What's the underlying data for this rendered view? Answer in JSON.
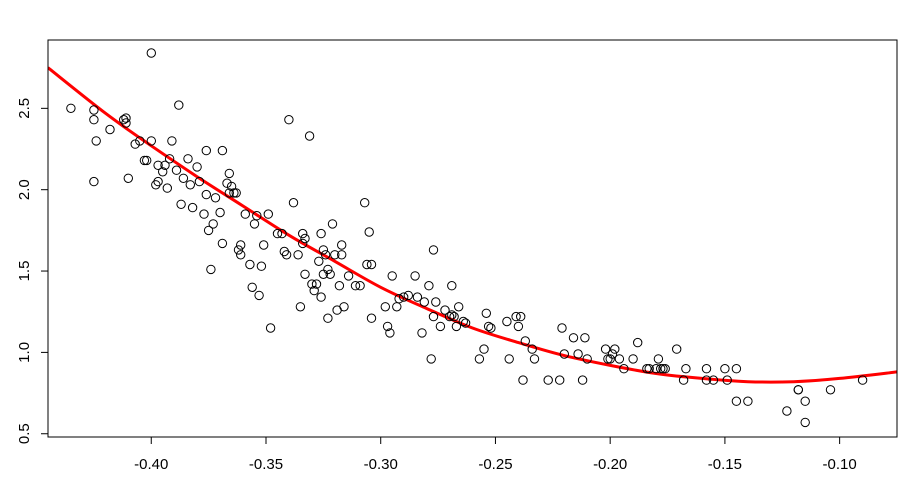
{
  "chart_data": {
    "type": "scatter",
    "title": "",
    "xlabel": "",
    "ylabel": "",
    "xlim": [
      -0.445,
      -0.075
    ],
    "ylim": [
      0.48,
      2.92
    ],
    "x_ticks": [
      -0.4,
      -0.35,
      -0.3,
      -0.25,
      -0.2,
      -0.15,
      -0.1
    ],
    "x_tick_labels": [
      "-0.40",
      "-0.35",
      "-0.30",
      "-0.25",
      "-0.20",
      "-0.15",
      "-0.10"
    ],
    "y_ticks": [
      0.5,
      1.0,
      1.5,
      2.0,
      2.5
    ],
    "y_tick_labels": [
      "0.5",
      "1.0",
      "1.5",
      "2.0",
      "2.5"
    ],
    "grid": false,
    "legend": "none",
    "series": [
      {
        "kind": "points",
        "marker": "open-circle",
        "color": "#000000",
        "points": [
          [
            -0.435,
            2.5
          ],
          [
            -0.425,
            2.49
          ],
          [
            -0.425,
            2.43
          ],
          [
            -0.424,
            2.3
          ],
          [
            -0.425,
            2.05
          ],
          [
            -0.418,
            2.37
          ],
          [
            -0.412,
            2.43
          ],
          [
            -0.411,
            2.44
          ],
          [
            -0.411,
            2.41
          ],
          [
            -0.41,
            2.07
          ],
          [
            -0.407,
            2.28
          ],
          [
            -0.405,
            2.3
          ],
          [
            -0.403,
            2.18
          ],
          [
            -0.402,
            2.18
          ],
          [
            -0.4,
            2.84
          ],
          [
            -0.4,
            2.3
          ],
          [
            -0.398,
            2.03
          ],
          [
            -0.397,
            2.05
          ],
          [
            -0.397,
            2.15
          ],
          [
            -0.395,
            2.11
          ],
          [
            -0.394,
            2.15
          ],
          [
            -0.393,
            2.01
          ],
          [
            -0.392,
            2.19
          ],
          [
            -0.391,
            2.3
          ],
          [
            -0.389,
            2.12
          ],
          [
            -0.388,
            2.52
          ],
          [
            -0.387,
            1.91
          ],
          [
            -0.386,
            2.07
          ],
          [
            -0.384,
            2.19
          ],
          [
            -0.383,
            2.03
          ],
          [
            -0.382,
            1.89
          ],
          [
            -0.38,
            2.14
          ],
          [
            -0.379,
            2.05
          ],
          [
            -0.377,
            1.85
          ],
          [
            -0.376,
            2.24
          ],
          [
            -0.376,
            1.97
          ],
          [
            -0.375,
            1.75
          ],
          [
            -0.374,
            1.51
          ],
          [
            -0.373,
            1.79
          ],
          [
            -0.372,
            1.95
          ],
          [
            -0.37,
            1.86
          ],
          [
            -0.369,
            2.24
          ],
          [
            -0.369,
            1.67
          ],
          [
            -0.367,
            2.04
          ],
          [
            -0.366,
            2.1
          ],
          [
            -0.366,
            1.98
          ],
          [
            -0.365,
            2.02
          ],
          [
            -0.364,
            1.98
          ],
          [
            -0.363,
            1.98
          ],
          [
            -0.362,
            1.63
          ],
          [
            -0.361,
            1.66
          ],
          [
            -0.361,
            1.6
          ],
          [
            -0.359,
            1.85
          ],
          [
            -0.357,
            1.54
          ],
          [
            -0.356,
            1.4
          ],
          [
            -0.355,
            1.79
          ],
          [
            -0.354,
            1.84
          ],
          [
            -0.353,
            1.35
          ],
          [
            -0.352,
            1.53
          ],
          [
            -0.351,
            1.66
          ],
          [
            -0.349,
            1.85
          ],
          [
            -0.348,
            1.15
          ],
          [
            -0.345,
            1.73
          ],
          [
            -0.343,
            1.73
          ],
          [
            -0.342,
            1.62
          ],
          [
            -0.341,
            1.6
          ],
          [
            -0.34,
            2.43
          ],
          [
            -0.338,
            1.92
          ],
          [
            -0.336,
            1.6
          ],
          [
            -0.335,
            1.28
          ],
          [
            -0.334,
            1.67
          ],
          [
            -0.334,
            1.73
          ],
          [
            -0.333,
            1.7
          ],
          [
            -0.333,
            1.48
          ],
          [
            -0.331,
            2.33
          ],
          [
            -0.33,
            1.42
          ],
          [
            -0.329,
            1.38
          ],
          [
            -0.328,
            1.42
          ],
          [
            -0.327,
            1.56
          ],
          [
            -0.326,
            1.73
          ],
          [
            -0.326,
            1.34
          ],
          [
            -0.325,
            1.63
          ],
          [
            -0.325,
            1.48
          ],
          [
            -0.324,
            1.6
          ],
          [
            -0.323,
            1.51
          ],
          [
            -0.323,
            1.21
          ],
          [
            -0.322,
            1.48
          ],
          [
            -0.321,
            1.79
          ],
          [
            -0.32,
            1.6
          ],
          [
            -0.319,
            1.26
          ],
          [
            -0.318,
            1.41
          ],
          [
            -0.317,
            1.6
          ],
          [
            -0.317,
            1.66
          ],
          [
            -0.316,
            1.28
          ],
          [
            -0.314,
            1.47
          ],
          [
            -0.311,
            1.41
          ],
          [
            -0.309,
            1.41
          ],
          [
            -0.307,
            1.92
          ],
          [
            -0.306,
            1.54
          ],
          [
            -0.305,
            1.74
          ],
          [
            -0.304,
            1.54
          ],
          [
            -0.304,
            1.21
          ],
          [
            -0.298,
            1.28
          ],
          [
            -0.297,
            1.16
          ],
          [
            -0.296,
            1.12
          ],
          [
            -0.295,
            1.47
          ],
          [
            -0.293,
            1.28
          ],
          [
            -0.292,
            1.33
          ],
          [
            -0.29,
            1.34
          ],
          [
            -0.288,
            1.35
          ],
          [
            -0.285,
            1.47
          ],
          [
            -0.284,
            1.34
          ],
          [
            -0.282,
            1.12
          ],
          [
            -0.281,
            1.31
          ],
          [
            -0.279,
            1.41
          ],
          [
            -0.278,
            0.96
          ],
          [
            -0.277,
            1.22
          ],
          [
            -0.277,
            1.63
          ],
          [
            -0.276,
            1.31
          ],
          [
            -0.274,
            1.16
          ],
          [
            -0.272,
            1.26
          ],
          [
            -0.27,
            1.22
          ],
          [
            -0.269,
            1.41
          ],
          [
            -0.269,
            1.23
          ],
          [
            -0.268,
            1.22
          ],
          [
            -0.267,
            1.16
          ],
          [
            -0.266,
            1.28
          ],
          [
            -0.264,
            1.19
          ],
          [
            -0.263,
            1.18
          ],
          [
            -0.257,
            0.96
          ],
          [
            -0.255,
            1.02
          ],
          [
            -0.254,
            1.24
          ],
          [
            -0.253,
            1.16
          ],
          [
            -0.252,
            1.15
          ],
          [
            -0.245,
            1.19
          ],
          [
            -0.244,
            0.96
          ],
          [
            -0.241,
            1.22
          ],
          [
            -0.24,
            1.16
          ],
          [
            -0.239,
            1.22
          ],
          [
            -0.238,
            0.83
          ],
          [
            -0.237,
            1.07
          ],
          [
            -0.234,
            1.02
          ],
          [
            -0.233,
            0.96
          ],
          [
            -0.227,
            0.83
          ],
          [
            -0.222,
            0.83
          ],
          [
            -0.221,
            1.15
          ],
          [
            -0.22,
            0.99
          ],
          [
            -0.216,
            1.09
          ],
          [
            -0.214,
            0.99
          ],
          [
            -0.212,
            0.83
          ],
          [
            -0.211,
            1.09
          ],
          [
            -0.21,
            0.96
          ],
          [
            -0.202,
            1.02
          ],
          [
            -0.201,
            0.96
          ],
          [
            -0.2,
            0.96
          ],
          [
            -0.199,
            0.99
          ],
          [
            -0.198,
            1.02
          ],
          [
            -0.196,
            0.96
          ],
          [
            -0.194,
            0.9
          ],
          [
            -0.19,
            0.96
          ],
          [
            -0.188,
            1.06
          ],
          [
            -0.184,
            0.9
          ],
          [
            -0.183,
            0.9
          ],
          [
            -0.18,
            0.9
          ],
          [
            -0.179,
            0.96
          ],
          [
            -0.178,
            0.9
          ],
          [
            -0.177,
            0.9
          ],
          [
            -0.176,
            0.9
          ],
          [
            -0.171,
            1.02
          ],
          [
            -0.168,
            0.83
          ],
          [
            -0.167,
            0.9
          ],
          [
            -0.158,
            0.83
          ],
          [
            -0.158,
            0.9
          ],
          [
            -0.155,
            0.83
          ],
          [
            -0.15,
            0.9
          ],
          [
            -0.149,
            0.83
          ],
          [
            -0.145,
            0.7
          ],
          [
            -0.145,
            0.9
          ],
          [
            -0.14,
            0.7
          ],
          [
            -0.123,
            0.64
          ],
          [
            -0.118,
            0.77
          ],
          [
            -0.118,
            0.77
          ],
          [
            -0.115,
            0.57
          ],
          [
            -0.115,
            0.7
          ],
          [
            -0.104,
            0.77
          ],
          [
            -0.09,
            0.83
          ]
        ]
      },
      {
        "kind": "fitted-curve",
        "color": "#ff0000",
        "x": [
          -0.445,
          -0.42,
          -0.4,
          -0.38,
          -0.36,
          -0.34,
          -0.32,
          -0.3,
          -0.28,
          -0.26,
          -0.24,
          -0.22,
          -0.2,
          -0.18,
          -0.16,
          -0.14,
          -0.12,
          -0.1,
          -0.075
        ],
        "y": [
          2.75,
          2.47,
          2.27,
          2.08,
          1.9,
          1.72,
          1.56,
          1.4,
          1.27,
          1.15,
          1.06,
          0.98,
          0.92,
          0.87,
          0.84,
          0.82,
          0.82,
          0.84,
          0.88
        ]
      }
    ]
  }
}
